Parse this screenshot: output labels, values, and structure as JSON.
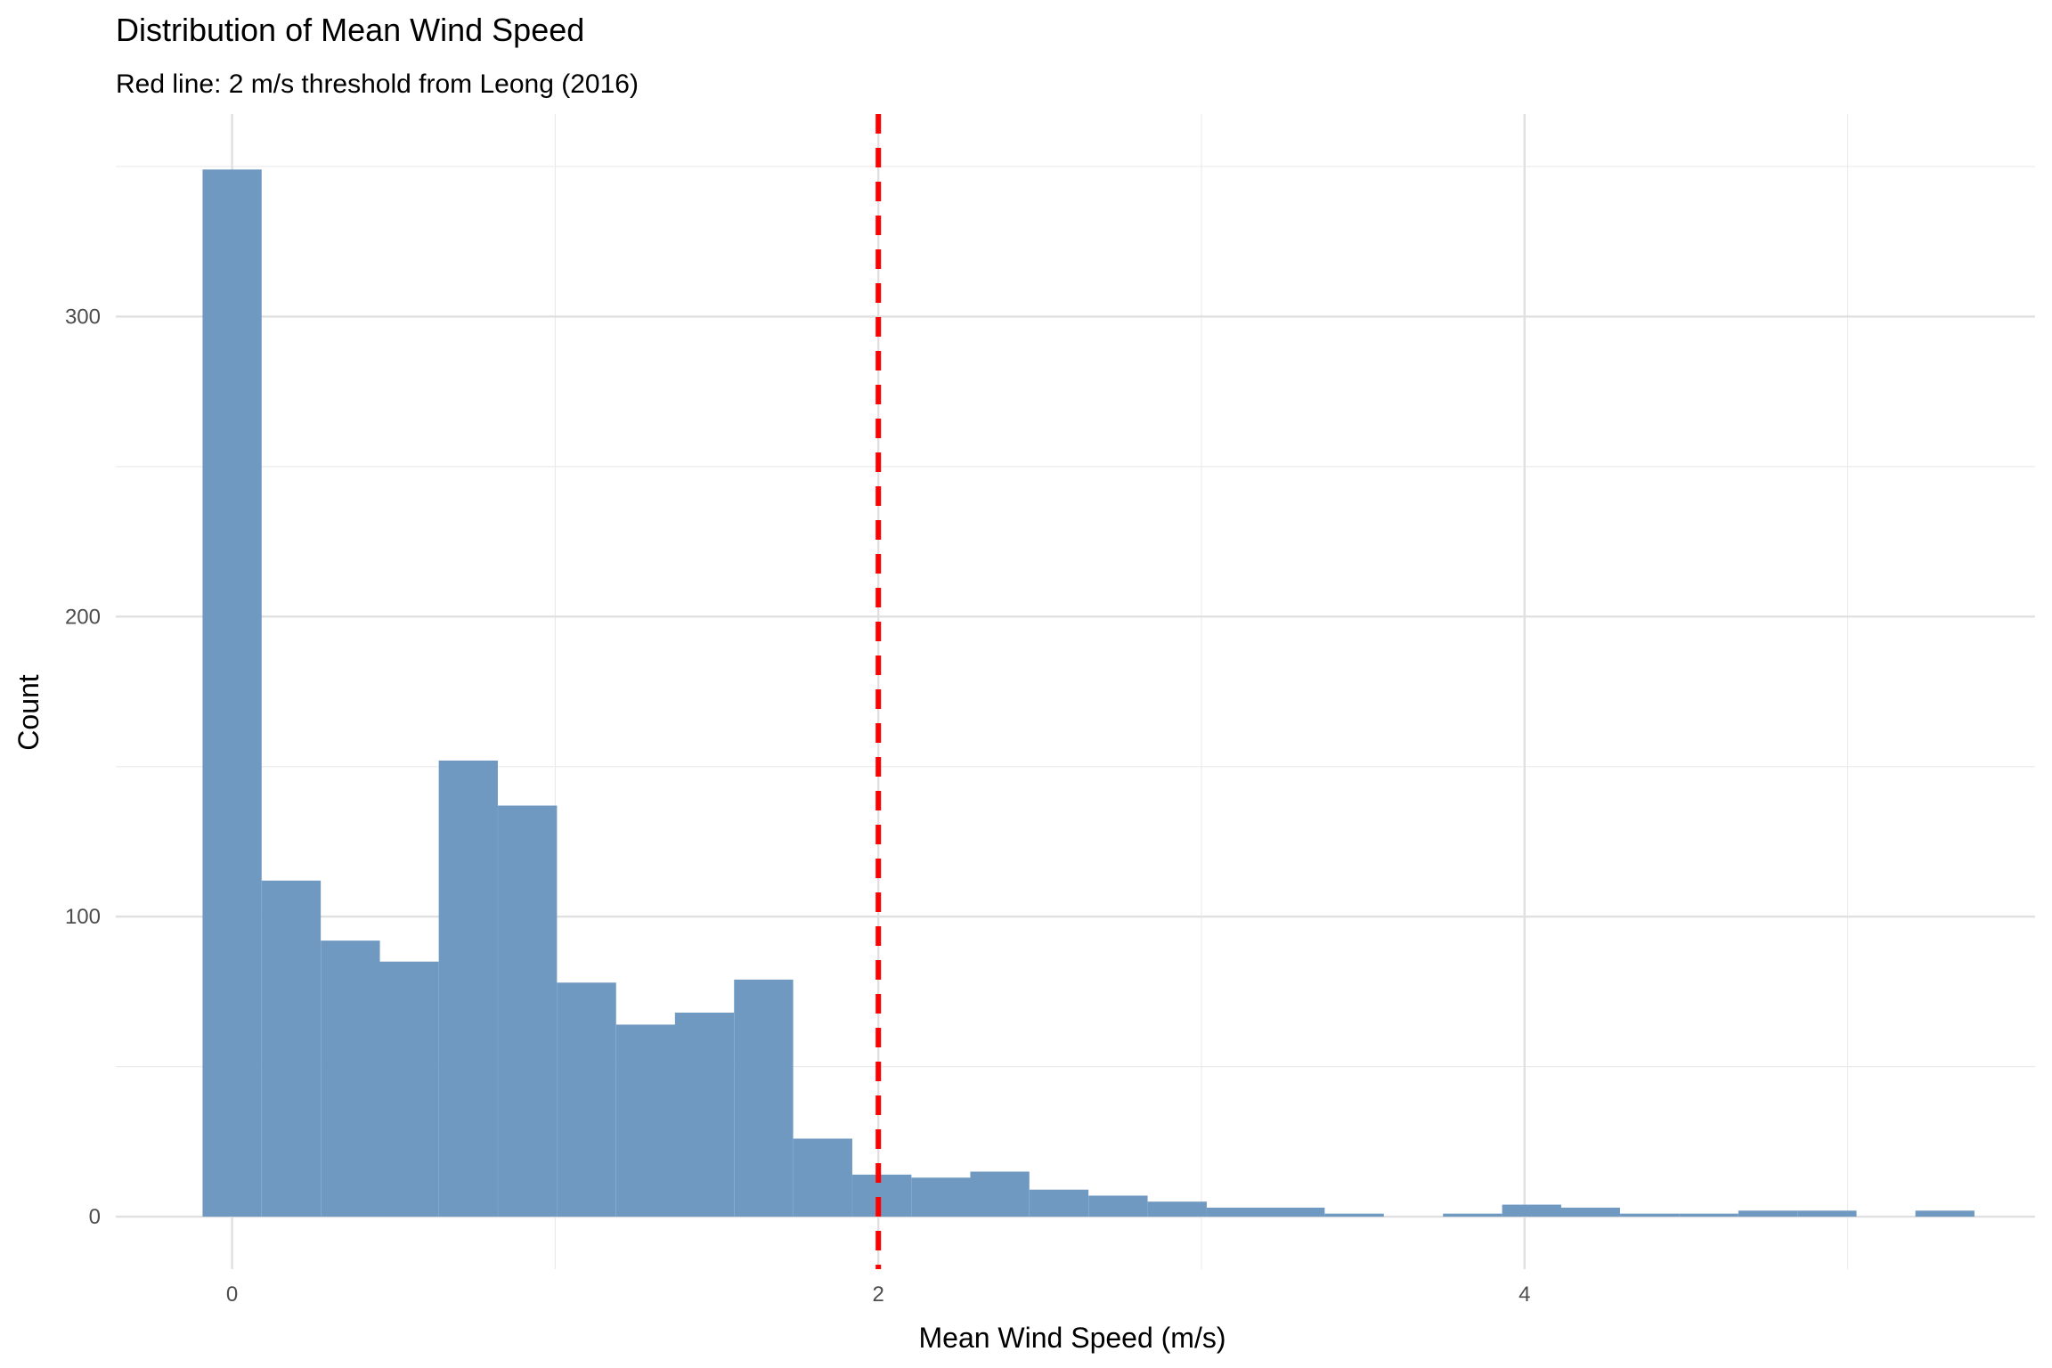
{
  "chart_data": {
    "type": "bar",
    "title": "Distribution of Mean Wind Speed",
    "subtitle": "Red line: 2 m/s threshold from Leong (2016)",
    "xlabel": "Mean Wind Speed (m/s)",
    "ylabel": "Count",
    "xlim": [
      -0.36,
      5.58
    ],
    "ylim": [
      -17.5,
      367.5
    ],
    "x_ticks": [
      0,
      2,
      4
    ],
    "x_tick_labels": [
      "0",
      "2",
      "4"
    ],
    "y_ticks": [
      0,
      100,
      200,
      300
    ],
    "y_tick_labels": [
      "0",
      "100",
      "200",
      "300"
    ],
    "bin_width": 0.1828,
    "bin_centers": [
      0.0,
      0.183,
      0.366,
      0.548,
      0.731,
      0.914,
      1.097,
      1.28,
      1.462,
      1.645,
      1.828,
      2.011,
      2.194,
      2.376,
      2.559,
      2.742,
      2.925,
      3.108,
      3.29,
      3.473,
      3.656,
      3.839,
      4.022,
      4.204,
      4.387,
      4.57,
      4.753,
      4.936,
      5.118,
      5.301
    ],
    "values": [
      349,
      112,
      92,
      85,
      152,
      137,
      78,
      64,
      68,
      79,
      26,
      14,
      13,
      15,
      9,
      7,
      5,
      3,
      3,
      1,
      0,
      1,
      4,
      3,
      1,
      1,
      2,
      2,
      0,
      2
    ],
    "reference_line": {
      "x": 2,
      "color": "#ff0000",
      "style": "dashed"
    },
    "bar_color": "#7099c2",
    "grid": true,
    "legend": "none"
  }
}
